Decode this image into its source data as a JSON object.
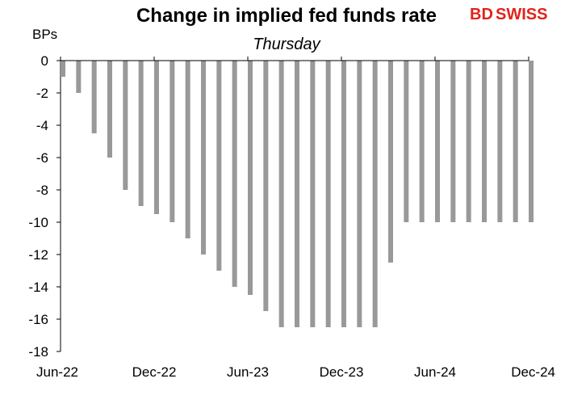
{
  "brand": {
    "logo_bd": "BD",
    "logo_swiss": "SWISS",
    "accent": "#e2231a"
  },
  "chart_data": {
    "type": "bar",
    "title": "Change in implied fed funds rate",
    "subtitle": "Thursday",
    "ylabel": "BPs",
    "ylim": [
      -18,
      0
    ],
    "yticks": [
      0,
      -2,
      -4,
      -6,
      -8,
      -10,
      -12,
      -14,
      -16,
      -18
    ],
    "x_tick_labels": [
      "Jun-22",
      "Dec-22",
      "Jun-23",
      "Dec-23",
      "Jun-24",
      "Dec-24"
    ],
    "x_tick_positions": [
      0,
      6,
      12,
      18,
      24,
      30
    ],
    "bar_color": "#999999",
    "grid": false,
    "series": [
      {
        "values": [
          -1,
          -2,
          -4.5,
          -6,
          -8,
          -9,
          -9.5,
          -10,
          -11,
          -12,
          -13,
          -14,
          -14.5,
          -15.5,
          -16.5,
          -16.5,
          -16.5,
          -16.5,
          -16.5,
          -16.5,
          -16.5,
          -12.5,
          -10,
          -10,
          -10,
          -10,
          -10,
          -10,
          -10,
          -10,
          -10
        ]
      }
    ]
  }
}
